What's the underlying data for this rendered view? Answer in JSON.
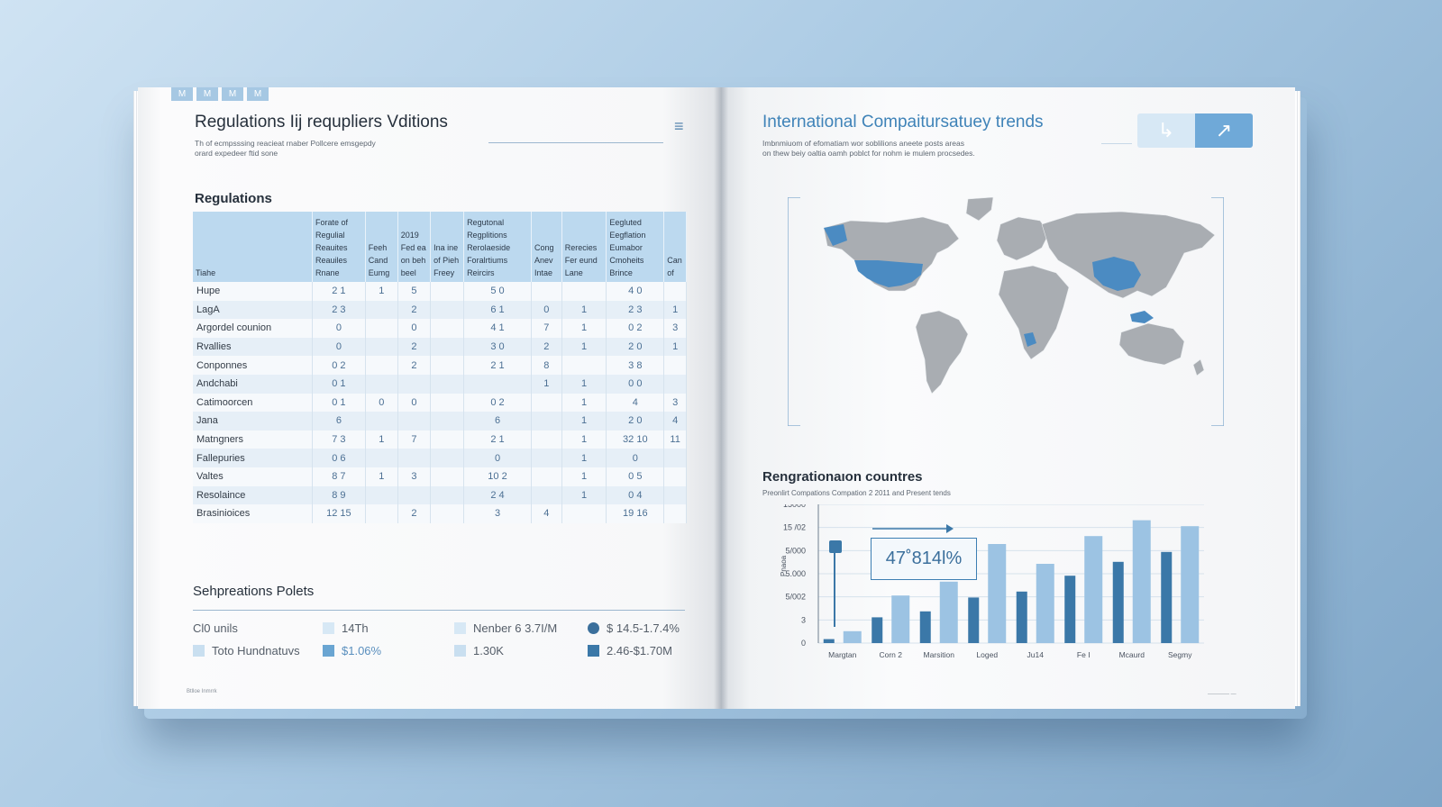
{
  "left_page": {
    "tab_icons": [
      "M",
      "M",
      "M",
      "M"
    ],
    "title": "Regulations Iĳ requpliers Vditions",
    "subtitle_lines": [
      "Th of ecmpsssing reacieat rnaber Pollcere emsgepdy",
      "orard expedeer ftid sone"
    ],
    "menu_icon": "≡",
    "section1": "Regulations",
    "table": {
      "headers": [
        "Tiahe",
        "Forate of Regulial Reauites Reauiles Rnane",
        "Feeh Cand Eumg",
        "2019 Fed ea on beh beel",
        "Ina ine of Pieh Freey",
        "Regutonal Regplitions Rerolaeside Foralrtiums Reircirs",
        "Cong Anev Intae",
        "Rerecies Fer eund Lane",
        "Eegluted Eegflation Eumabor Cmoheits Brince",
        "Can of"
      ],
      "rows": [
        [
          "Hupe",
          "2 1",
          "1",
          "5",
          "",
          "5 0",
          "",
          "",
          "4 0",
          ""
        ],
        [
          "LagA",
          "2 3",
          "",
          "2",
          "",
          "6 1",
          "0",
          "1",
          "2 3",
          "1"
        ],
        [
          "Argordel counion",
          "0",
          "",
          "0",
          "",
          "4 1",
          "7",
          "1",
          "0 2",
          "3"
        ],
        [
          "Rvallies",
          "0",
          "",
          "2",
          "",
          "3 0",
          "2",
          "1",
          "2 0",
          "1"
        ],
        [
          "Conponnes",
          "0 2",
          "",
          "2",
          "",
          "2 1",
          "8",
          "",
          "3 8",
          ""
        ],
        [
          "Andchabi",
          "0 1",
          "",
          "",
          "",
          "",
          "1",
          "1",
          "0 0",
          ""
        ],
        [
          "Catimoorcen",
          "0 1",
          "0",
          "0",
          "",
          "0 2",
          "",
          "1",
          "4",
          "3"
        ],
        [
          "Jana",
          "6",
          "",
          "",
          "",
          "6",
          "",
          "1",
          "2 0",
          "4"
        ],
        [
          "Matngners",
          "7 3",
          "1",
          "7",
          "",
          "2 1",
          "",
          "1",
          "32 10",
          "11"
        ],
        [
          "Fallepuries",
          "0 6",
          "",
          "",
          "",
          "0",
          "",
          "1",
          "0",
          ""
        ],
        [
          "Valtes",
          "8 7",
          "1",
          "3",
          "",
          "10 2",
          "",
          "1",
          "0 5",
          ""
        ],
        [
          "Resolaince",
          "8 9",
          "",
          "",
          "",
          "2 4",
          "",
          "1",
          "0 4",
          ""
        ],
        [
          "Brasinioices",
          "12 15",
          "",
          "2",
          "",
          "3",
          "4",
          "",
          "19 16",
          ""
        ]
      ]
    },
    "section2": "Sehpreations Polets",
    "legend": [
      {
        "label": "Сl0 unils",
        "swatch": ""
      },
      {
        "label": "Toto Hundnatuvs",
        "swatch": "#c9dff0"
      },
      {
        "label": "14Th",
        "swatch": "#d7e8f5"
      },
      {
        "label": "$1.06%",
        "swatch": "#6aa5d2"
      },
      {
        "label": "Nenber 6 3.7I/M",
        "swatch": "#d7e8f5"
      },
      {
        "label": "1.30K",
        "swatch": "#c9dff0"
      },
      {
        "label": "$ 14.5-1.7.4%",
        "swatch": "#3b6f9c"
      },
      {
        "label": "2.46-$1.70M",
        "swatch": "#3b78a8"
      }
    ],
    "footer": "Btlloe Inmrrk"
  },
  "right_page": {
    "title": "International Compaitursatuey trends",
    "subtitle_lines": [
      "Imbnmiuom of efomatiam wor soblilions aneete posts areas",
      "on thew beiy oaltia oamh poblct for nohm ie mulem procsedes."
    ],
    "buttons": [
      "↳",
      "↗"
    ],
    "map": {
      "highlighted": [
        "United States",
        "China",
        "Indonesia",
        "Southern Africa"
      ]
    },
    "section": "Rengrationaıon countres",
    "chart_caption": "Preonlirt Compations Compation 2 2011 and Present tends",
    "footer": "———— —"
  },
  "chart_data": {
    "type": "bar",
    "title": "",
    "categories": [
      "Margtan",
      "Corn 2",
      "Marsition",
      "Loged",
      "Ju14",
      "Fe I",
      "Mcaurd",
      "Segmy"
    ],
    "ytick_labels": [
      "0",
      "3",
      "5/002",
      "5.000",
      "5/000",
      "15 /02",
      "15000"
    ],
    "ylabel": "Pnaoa",
    "series": [
      {
        "values": [
          0.2,
          1.3,
          1.6,
          2.3,
          2.6,
          3.4,
          4.1,
          4.6
        ],
        "color": "#3b78a8"
      },
      {
        "values": [
          0.6,
          2.4,
          3.1,
          5.0,
          4.0,
          5.4,
          6.2,
          5.9
        ],
        "color": "#9cc3e3"
      }
    ],
    "ylim": [
      0,
      7
    ],
    "grid": true,
    "annotation": "47˚814l%"
  }
}
